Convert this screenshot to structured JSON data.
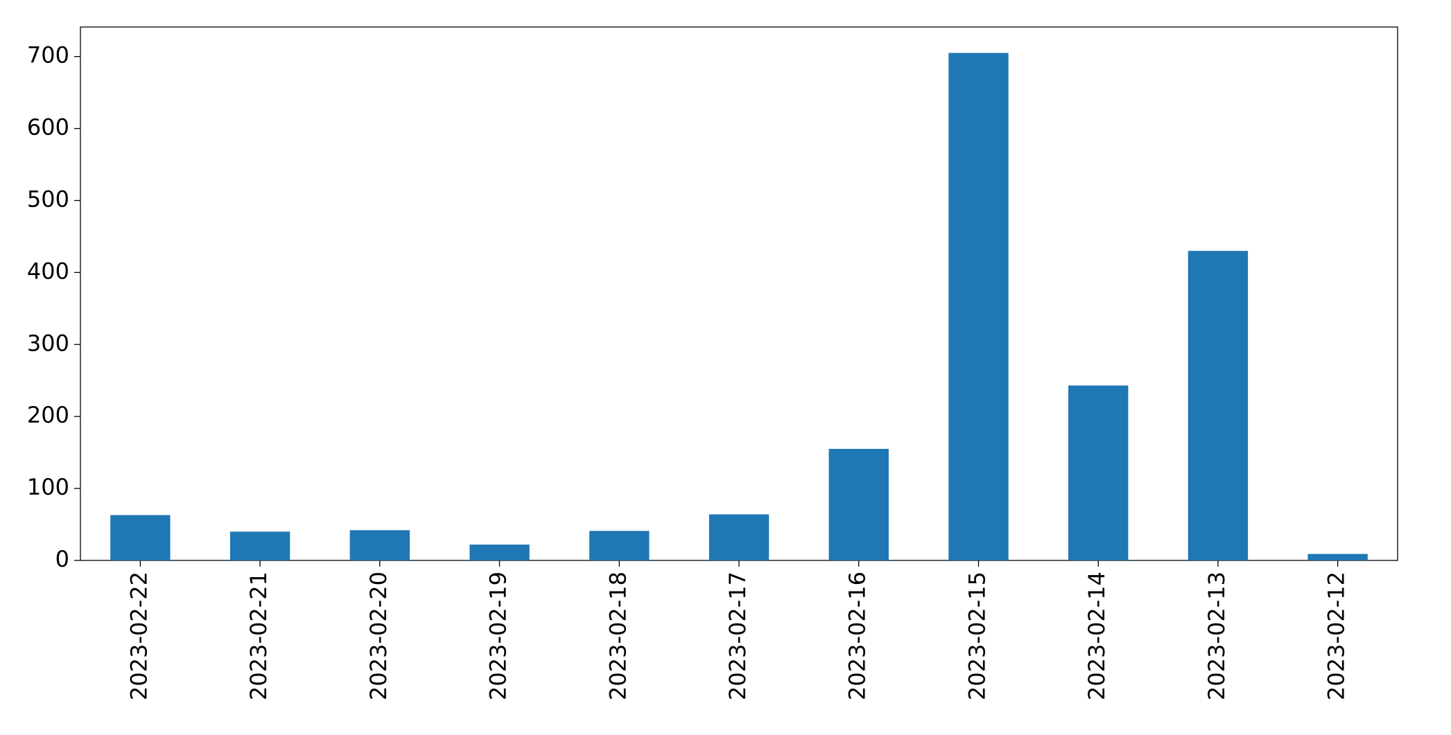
{
  "chart_data": {
    "type": "bar",
    "categories": [
      "2023-02-22",
      "2023-02-21",
      "2023-02-20",
      "2023-02-19",
      "2023-02-18",
      "2023-02-17",
      "2023-02-16",
      "2023-02-15",
      "2023-02-14",
      "2023-02-13",
      "2023-02-12"
    ],
    "values": [
      63,
      40,
      42,
      22,
      41,
      64,
      155,
      705,
      243,
      430,
      9
    ],
    "color": "#1f77b4",
    "ylim": [
      0,
      741
    ],
    "yticks": [
      0,
      100,
      200,
      300,
      400,
      500,
      600,
      700
    ],
    "grid": false
  }
}
